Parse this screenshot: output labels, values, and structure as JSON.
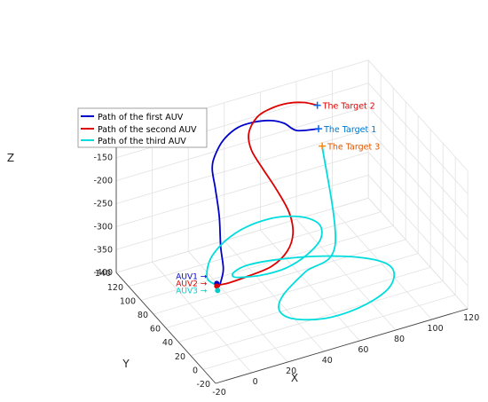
{
  "chart_data": {
    "type": "line",
    "subtype": "3d-path",
    "title": "",
    "xlabel": "X",
    "ylabel": "Y",
    "zlabel": "Z",
    "xlim": [
      -20,
      120
    ],
    "ylim": [
      -20,
      140
    ],
    "zlim": [
      -400,
      -100
    ],
    "x_ticks": [
      "-20",
      "0",
      "20",
      "40",
      "60",
      "80",
      "100",
      "120"
    ],
    "y_ticks": [
      "-20",
      "0",
      "20",
      "40",
      "60",
      "80",
      "100",
      "120",
      "140"
    ],
    "z_ticks": [
      "-100",
      "-150",
      "-200",
      "-250",
      "-300",
      "-350",
      "-400"
    ],
    "grid": true,
    "legend_position": "upper-left",
    "series": [
      {
        "name": "Path of the first AUV",
        "color": "#0000cc",
        "points": [
          [
            11,
            68,
            -355
          ],
          [
            10,
            62,
            -348
          ],
          [
            12,
            64,
            -340
          ],
          [
            16,
            72,
            -330
          ],
          [
            18,
            82,
            -300
          ],
          [
            22,
            96,
            -260
          ],
          [
            24,
            108,
            -220
          ],
          [
            25,
            116,
            -190
          ],
          [
            28,
            120,
            -170
          ],
          [
            34,
            124,
            -150
          ],
          [
            42,
            124,
            -132
          ],
          [
            50,
            121,
            -125
          ],
          [
            58,
            117,
            -125
          ],
          [
            64,
            113,
            -132
          ],
          [
            70,
            110,
            -150
          ],
          [
            82,
            110,
            -160
          ]
        ]
      },
      {
        "name": "Path of the second AUV",
        "color": "#dd0000",
        "points": [
          [
            11,
            68,
            -355
          ],
          [
            16,
            64,
            -350
          ],
          [
            26,
            60,
            -340
          ],
          [
            38,
            58,
            -330
          ],
          [
            48,
            62,
            -315
          ],
          [
            54,
            70,
            -295
          ],
          [
            56,
            82,
            -270
          ],
          [
            54,
            96,
            -240
          ],
          [
            50,
            108,
            -205
          ],
          [
            46,
            114,
            -170
          ],
          [
            46,
            118,
            -140
          ],
          [
            52,
            122,
            -118
          ],
          [
            60,
            122,
            -108
          ],
          [
            68,
            119,
            -102
          ],
          [
            76,
            116,
            -105
          ],
          [
            82,
            112,
            -112
          ]
        ]
      },
      {
        "name": "Path of the third AUV",
        "color": "#00dddd",
        "points": [
          [
            11,
            68,
            -355
          ],
          [
            8,
            75,
            -345
          ],
          [
            16,
            90,
            -330
          ],
          [
            32,
            100,
            -315
          ],
          [
            50,
            100,
            -305
          ],
          [
            64,
            90,
            -300
          ],
          [
            70,
            75,
            -300
          ],
          [
            66,
            60,
            -305
          ],
          [
            55,
            50,
            -312
          ],
          [
            42,
            46,
            -320
          ],
          [
            30,
            49,
            -326
          ],
          [
            22,
            56,
            -332
          ],
          [
            19,
            64,
            -340
          ],
          [
            22,
            72,
            -345
          ],
          [
            32,
            78,
            -350
          ],
          [
            50,
            76,
            -355
          ],
          [
            70,
            68,
            -360
          ],
          [
            88,
            55,
            -365
          ],
          [
            97,
            42,
            -370
          ],
          [
            96,
            29,
            -375
          ],
          [
            87,
            17,
            -380
          ],
          [
            70,
            10,
            -385
          ],
          [
            52,
            12,
            -390
          ],
          [
            38,
            22,
            -390
          ],
          [
            34,
            34,
            -385
          ],
          [
            40,
            45,
            -375
          ],
          [
            56,
            56,
            -360
          ],
          [
            76,
            66,
            -340
          ],
          [
            84,
            110,
            -200
          ]
        ]
      }
    ],
    "targets": [
      {
        "label": "The Target 1",
        "color": "#0077cc",
        "marker_color": "#0066ee",
        "x": 82,
        "y": 110,
        "z": -160
      },
      {
        "label": "The Target 2",
        "color": "#dd0000",
        "marker_color": "#0066ee",
        "x": 82,
        "y": 112,
        "z": -112
      },
      {
        "label": "The Target 3",
        "color": "#dd5500",
        "marker_color": "#ff8800",
        "x": 84,
        "y": 110,
        "z": -200
      }
    ],
    "start_labels": [
      {
        "label": "AUV1",
        "color": "#0000cc"
      },
      {
        "label": "AUV2",
        "color": "#dd0000"
      },
      {
        "label": "AUV3",
        "color": "#00cccc"
      }
    ]
  }
}
